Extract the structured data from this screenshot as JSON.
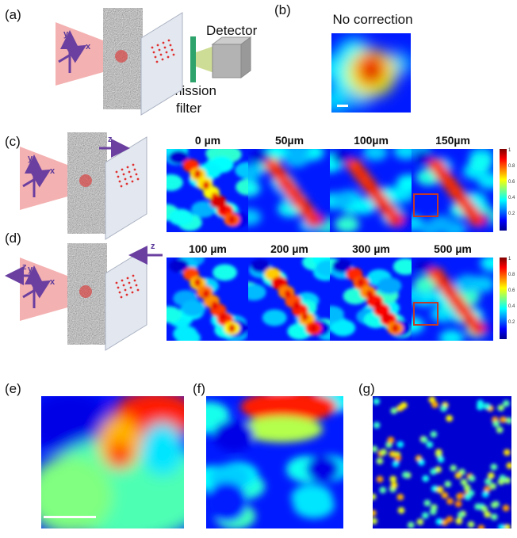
{
  "panels": {
    "a": {
      "label": "(a)",
      "detector": "Detector",
      "filter": [
        "Emission",
        "filter"
      ],
      "axes": [
        "x",
        "y"
      ]
    },
    "b": {
      "label": "(b)",
      "title": "No correction"
    },
    "c": {
      "label": "(c)",
      "shift": "z",
      "axes": [
        "x",
        "y"
      ],
      "frames": [
        "0 µm",
        "50µm",
        "100µm",
        "150µm"
      ]
    },
    "d": {
      "label": "(d)",
      "shift": "z",
      "shift2": "z",
      "axes": [
        "x",
        "y"
      ],
      "frames": [
        "100 µm",
        "200 µm",
        "300 µm",
        "500 µm"
      ]
    },
    "colorbar": [
      "1",
      "0.8",
      "0.6",
      "0.4",
      "0.2"
    ],
    "e": {
      "label": "(e)"
    },
    "f": {
      "label": "(f)"
    },
    "g": {
      "label": "(g)"
    }
  }
}
